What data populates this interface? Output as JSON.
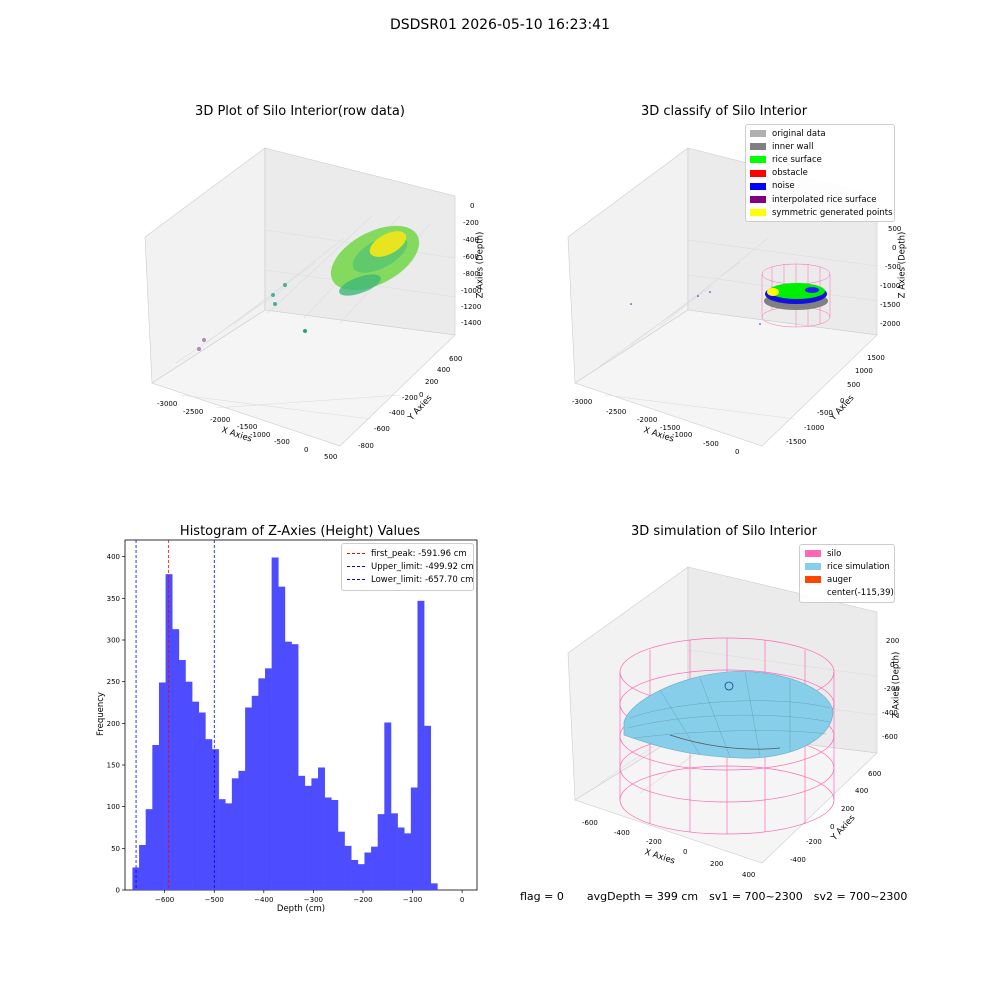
{
  "figure_title": "DSDSR01 2026-05-10 16:23:41",
  "footer": {
    "flag": "flag = 0",
    "avg_depth": "avgDepth = 399 cm",
    "sv1": "sv1 = 700~2300",
    "sv2": "sv2 = 700~2300"
  },
  "chart_data": [
    {
      "type": "scatter",
      "title": "3D Plot of Silo Interior(row data)",
      "xlabel": "X Axies",
      "ylabel": "Y Axies",
      "zlabel": "Z Axies (Depth)",
      "x_ticks": [
        "-3000",
        "-2500",
        "-2000",
        "-1500",
        "-1000",
        "-500",
        "0",
        "500"
      ],
      "y_ticks": [
        "-800",
        "-600",
        "-400",
        "-200",
        "0",
        "200",
        "400",
        "600"
      ],
      "z_ticks": [
        "0",
        "-200",
        "-400",
        "-600",
        "-800",
        "-1000",
        "-1200",
        "-1400"
      ],
      "xlim": [
        -3200,
        500
      ],
      "ylim": [
        -850,
        650
      ],
      "zlim": [
        -1500,
        50
      ],
      "grid": true,
      "colormap": "viridis"
    },
    {
      "type": "scatter",
      "title": "3D classify of Silo Interior",
      "xlabel": "X Axies",
      "ylabel": "Y Axies",
      "zlabel": "Z Axies (Depth)",
      "x_ticks": [
        "-3000",
        "-2500",
        "-2000",
        "-1500",
        "-1000",
        "-500",
        "0"
      ],
      "y_ticks": [
        "-1500",
        "-1000",
        "-500",
        "0",
        "500",
        "1000",
        "1500"
      ],
      "z_ticks": [
        "500",
        "0",
        "-500",
        "-1000",
        "-1500",
        "-2000"
      ],
      "grid": true,
      "legend_position": "top-right",
      "legend": [
        {
          "label": "original data",
          "color": "#b0b0b0"
        },
        {
          "label": "inner wall",
          "color": "#808080"
        },
        {
          "label": "rice surface",
          "color": "#00ff00"
        },
        {
          "label": "obstacle",
          "color": "#ff0000"
        },
        {
          "label": "noise",
          "color": "#0000ff"
        },
        {
          "label": "interpolated rice surface",
          "color": "#800080"
        },
        {
          "label": "symmetric generated points",
          "color": "#ffff00"
        }
      ]
    },
    {
      "type": "bar",
      "title": "Histogram of Z-Axies (Height) Values",
      "xlabel": "Depth (cm)",
      "ylabel": "Frequency",
      "bar_color": "#4d4dff",
      "xlim": [
        -680,
        30
      ],
      "ylim": [
        0,
        420
      ],
      "x_ticks": [
        -600,
        -500,
        -400,
        -300,
        -200,
        -100,
        0
      ],
      "y_ticks": [
        0,
        50,
        100,
        150,
        200,
        250,
        300,
        350,
        400
      ],
      "bin_start": -665,
      "bin_width": 13.37,
      "values": [
        27,
        54,
        97,
        174,
        249,
        379,
        313,
        276,
        250,
        226,
        213,
        181,
        169,
        109,
        104,
        134,
        143,
        219,
        233,
        254,
        266,
        399,
        364,
        298,
        295,
        137,
        125,
        134,
        147,
        111,
        108,
        70,
        53,
        36,
        31,
        45,
        52,
        91,
        201,
        92,
        75,
        68,
        123,
        347,
        197,
        8
      ],
      "vlines": [
        {
          "label": "first_peak: -591.96 cm",
          "x": -591.96,
          "color": "#ff0000"
        },
        {
          "label": "Upper_limit: -499.92 cm",
          "x": -499.92,
          "color": "#0000ff"
        },
        {
          "label": "Lower_limit: -657.70 cm",
          "x": -657.7,
          "color": "#0000ff"
        }
      ],
      "legend_position": "top-right"
    },
    {
      "type": "surface",
      "title": "3D simulation of Silo Interior",
      "xlabel": "X Axies",
      "ylabel": "Y Axies",
      "zlabel": "Z Axies (Depth)",
      "x_ticks": [
        "-600",
        "-400",
        "-200",
        "0",
        "200",
        "400"
      ],
      "y_ticks": [
        "-400",
        "-200",
        "0",
        "200",
        "400",
        "600"
      ],
      "z_ticks": [
        "200",
        "0",
        "-200",
        "-400",
        "-600"
      ],
      "grid": true,
      "legend_position": "top-right",
      "legend": [
        {
          "label": "silo",
          "color": "#ff69b4"
        },
        {
          "label": "rice simulation",
          "color": "#87ceeb"
        },
        {
          "label": "auger",
          "color": "#ff4500"
        },
        {
          "label": "center(-115,39)",
          "color": ""
        }
      ]
    }
  ]
}
